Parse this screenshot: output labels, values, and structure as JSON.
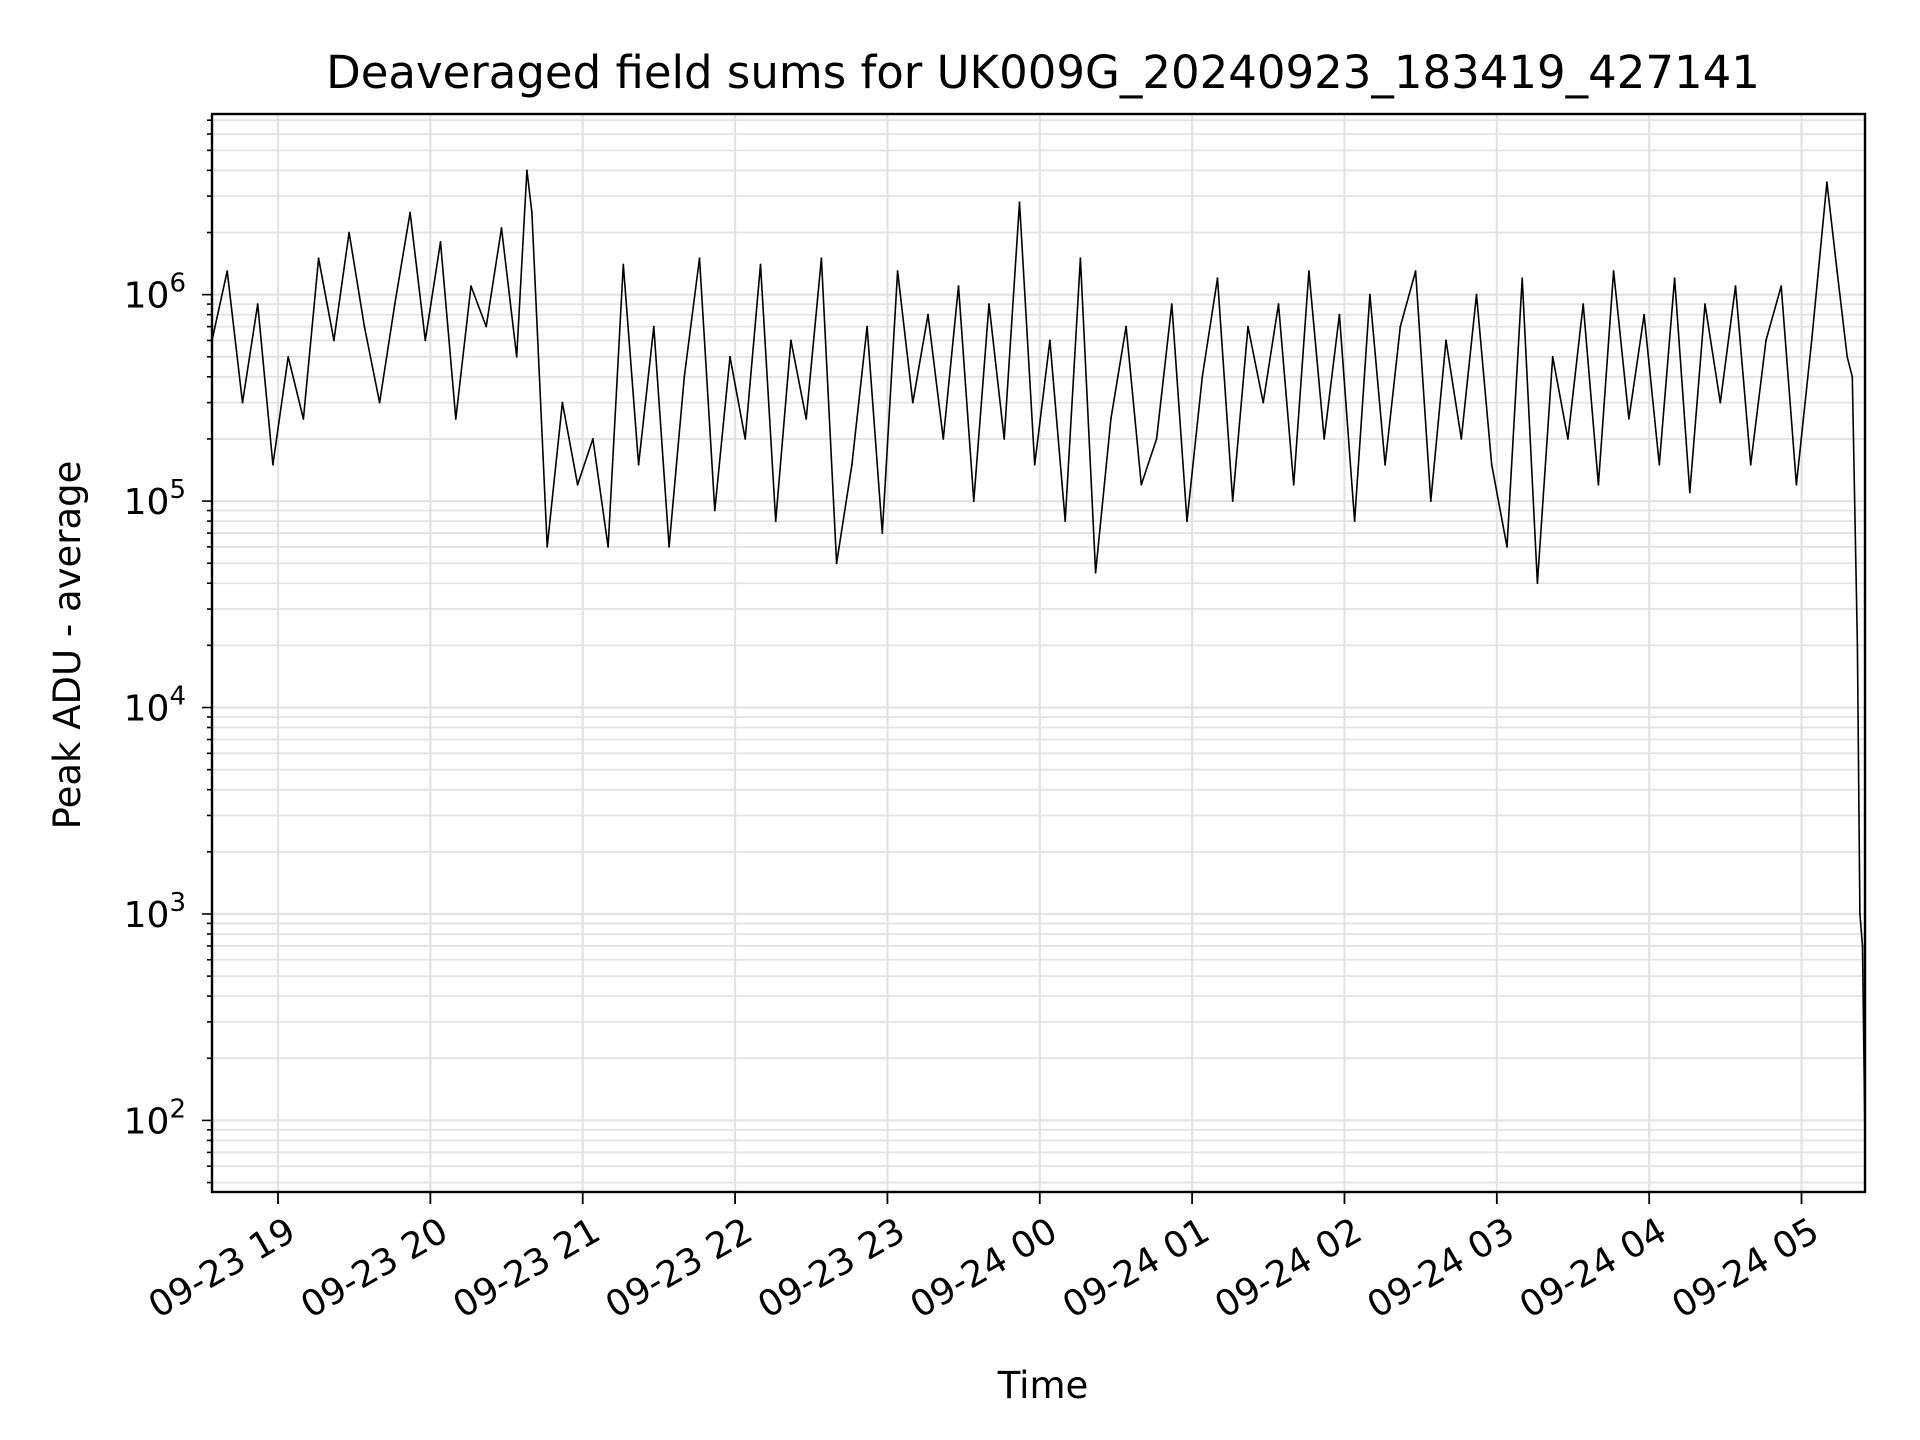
{
  "chart_data": {
    "type": "line",
    "title": "Deaveraged field sums for UK009G_20240923_183419_427141",
    "xlabel": "Time",
    "ylabel": "Peak ADU - average",
    "yscale": "log",
    "ylim": [
      45,
      7500000
    ],
    "xlim": [
      "2024-09-23 18:34",
      "2024-09-24 05:25"
    ],
    "grid": true,
    "line_color": "#000000",
    "x_ticks": [
      {
        "label": "09-23 19",
        "time": "2024-09-23 19:00"
      },
      {
        "label": "09-23 20",
        "time": "2024-09-23 20:00"
      },
      {
        "label": "09-23 21",
        "time": "2024-09-23 21:00"
      },
      {
        "label": "09-23 22",
        "time": "2024-09-23 22:00"
      },
      {
        "label": "09-23 23",
        "time": "2024-09-23 23:00"
      },
      {
        "label": "09-24 00",
        "time": "2024-09-24 00:00"
      },
      {
        "label": "09-24 01",
        "time": "2024-09-24 01:00"
      },
      {
        "label": "09-24 02",
        "time": "2024-09-24 02:00"
      },
      {
        "label": "09-24 03",
        "time": "2024-09-24 03:00"
      },
      {
        "label": "09-24 04",
        "time": "2024-09-24 04:00"
      },
      {
        "label": "09-24 05",
        "time": "2024-09-24 05:00"
      }
    ],
    "y_ticks": [
      {
        "base": "10",
        "exp": "2",
        "value": 100
      },
      {
        "base": "10",
        "exp": "3",
        "value": 1000
      },
      {
        "base": "10",
        "exp": "4",
        "value": 10000
      },
      {
        "base": "10",
        "exp": "5",
        "value": 100000
      },
      {
        "base": "10",
        "exp": "6",
        "value": 1000000
      }
    ],
    "x": [
      "2024-09-23 18:34",
      "2024-09-23 18:40",
      "2024-09-23 18:46",
      "2024-09-23 18:52",
      "2024-09-23 18:58",
      "2024-09-23 19:04",
      "2024-09-23 19:10",
      "2024-09-23 19:16",
      "2024-09-23 19:22",
      "2024-09-23 19:28",
      "2024-09-23 19:34",
      "2024-09-23 19:40",
      "2024-09-23 19:46",
      "2024-09-23 19:52",
      "2024-09-23 19:58",
      "2024-09-23 20:04",
      "2024-09-23 20:10",
      "2024-09-23 20:16",
      "2024-09-23 20:22",
      "2024-09-23 20:28",
      "2024-09-23 20:34",
      "2024-09-23 20:38",
      "2024-09-23 20:40",
      "2024-09-23 20:46",
      "2024-09-23 20:52",
      "2024-09-23 20:58",
      "2024-09-23 21:04",
      "2024-09-23 21:10",
      "2024-09-23 21:16",
      "2024-09-23 21:22",
      "2024-09-23 21:28",
      "2024-09-23 21:34",
      "2024-09-23 21:40",
      "2024-09-23 21:46",
      "2024-09-23 21:52",
      "2024-09-23 21:58",
      "2024-09-23 22:04",
      "2024-09-23 22:10",
      "2024-09-23 22:16",
      "2024-09-23 22:22",
      "2024-09-23 22:28",
      "2024-09-23 22:34",
      "2024-09-23 22:40",
      "2024-09-23 22:46",
      "2024-09-23 22:52",
      "2024-09-23 22:58",
      "2024-09-23 23:04",
      "2024-09-23 23:10",
      "2024-09-23 23:16",
      "2024-09-23 23:22",
      "2024-09-23 23:28",
      "2024-09-23 23:34",
      "2024-09-23 23:40",
      "2024-09-23 23:46",
      "2024-09-23 23:52",
      "2024-09-23 23:58",
      "2024-09-24 00:04",
      "2024-09-24 00:10",
      "2024-09-24 00:16",
      "2024-09-24 00:22",
      "2024-09-24 00:28",
      "2024-09-24 00:34",
      "2024-09-24 00:40",
      "2024-09-24 00:46",
      "2024-09-24 00:52",
      "2024-09-24 00:58",
      "2024-09-24 01:04",
      "2024-09-24 01:10",
      "2024-09-24 01:16",
      "2024-09-24 01:22",
      "2024-09-24 01:28",
      "2024-09-24 01:34",
      "2024-09-24 01:40",
      "2024-09-24 01:46",
      "2024-09-24 01:52",
      "2024-09-24 01:58",
      "2024-09-24 02:04",
      "2024-09-24 02:10",
      "2024-09-24 02:16",
      "2024-09-24 02:22",
      "2024-09-24 02:28",
      "2024-09-24 02:34",
      "2024-09-24 02:40",
      "2024-09-24 02:46",
      "2024-09-24 02:52",
      "2024-09-24 02:58",
      "2024-09-24 03:04",
      "2024-09-24 03:10",
      "2024-09-24 03:16",
      "2024-09-24 03:22",
      "2024-09-24 03:28",
      "2024-09-24 03:34",
      "2024-09-24 03:40",
      "2024-09-24 03:46",
      "2024-09-24 03:52",
      "2024-09-24 03:58",
      "2024-09-24 04:04",
      "2024-09-24 04:10",
      "2024-09-24 04:16",
      "2024-09-24 04:22",
      "2024-09-24 04:28",
      "2024-09-24 04:34",
      "2024-09-24 04:40",
      "2024-09-24 04:46",
      "2024-09-24 04:52",
      "2024-09-24 04:58",
      "2024-09-24 05:04",
      "2024-09-24 05:10",
      "2024-09-24 05:14",
      "2024-09-24 05:18",
      "2024-09-24 05:20",
      "2024-09-24 05:22",
      "2024-09-24 05:23",
      "2024-09-24 05:24",
      "2024-09-24 05:25"
    ],
    "values": [
      600000,
      1300000,
      300000,
      900000,
      150000,
      500000,
      250000,
      1500000,
      600000,
      2000000,
      700000,
      300000,
      900000,
      2500000,
      600000,
      1800000,
      250000,
      1100000,
      700000,
      2100000,
      500000,
      4000000,
      2500000,
      60000,
      300000,
      120000,
      200000,
      60000,
      1400000,
      150000,
      700000,
      60000,
      400000,
      1500000,
      90000,
      500000,
      200000,
      1400000,
      80000,
      600000,
      250000,
      1500000,
      50000,
      150000,
      700000,
      70000,
      1300000,
      300000,
      800000,
      200000,
      1100000,
      100000,
      900000,
      200000,
      2800000,
      150000,
      600000,
      80000,
      1500000,
      45000,
      250000,
      700000,
      120000,
      200000,
      900000,
      80000,
      400000,
      1200000,
      100000,
      700000,
      300000,
      900000,
      120000,
      1300000,
      200000,
      800000,
      80000,
      1000000,
      150000,
      700000,
      1300000,
      100000,
      600000,
      200000,
      1000000,
      150000,
      60000,
      1200000,
      40000,
      500000,
      200000,
      900000,
      120000,
      1300000,
      250000,
      800000,
      150000,
      1200000,
      110000,
      900000,
      300000,
      1100000,
      150000,
      600000,
      1100000,
      120000,
      600000,
      3500000,
      1300000,
      500000,
      400000,
      20000,
      1000,
      700,
      80
    ]
  }
}
